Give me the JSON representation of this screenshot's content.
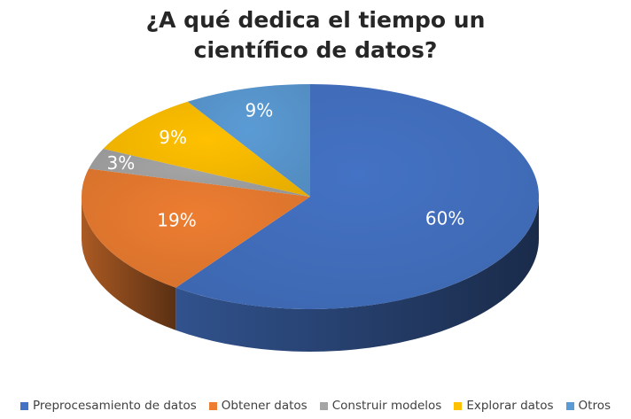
{
  "chart_data": {
    "type": "pie",
    "title_lines": [
      "¿A qué dedica el tiempo un",
      "científico de datos?"
    ],
    "slices": [
      {
        "label": "Preprocesamiento de datos",
        "value": 60,
        "display": "60%",
        "color": "#4472C4"
      },
      {
        "label": "Obtener datos",
        "value": 19,
        "display": "19%",
        "color": "#ED7D31"
      },
      {
        "label": "Construir modelos",
        "value": 3,
        "display": "3%",
        "color": "#A5A5A5"
      },
      {
        "label": "Explorar datos",
        "value": 9,
        "display": "9%",
        "color": "#FFC000"
      },
      {
        "label": "Otros",
        "value": 9,
        "display": "9%",
        "color": "#5B9BD5"
      }
    ],
    "legend_position": "bottom",
    "style": "3d"
  }
}
